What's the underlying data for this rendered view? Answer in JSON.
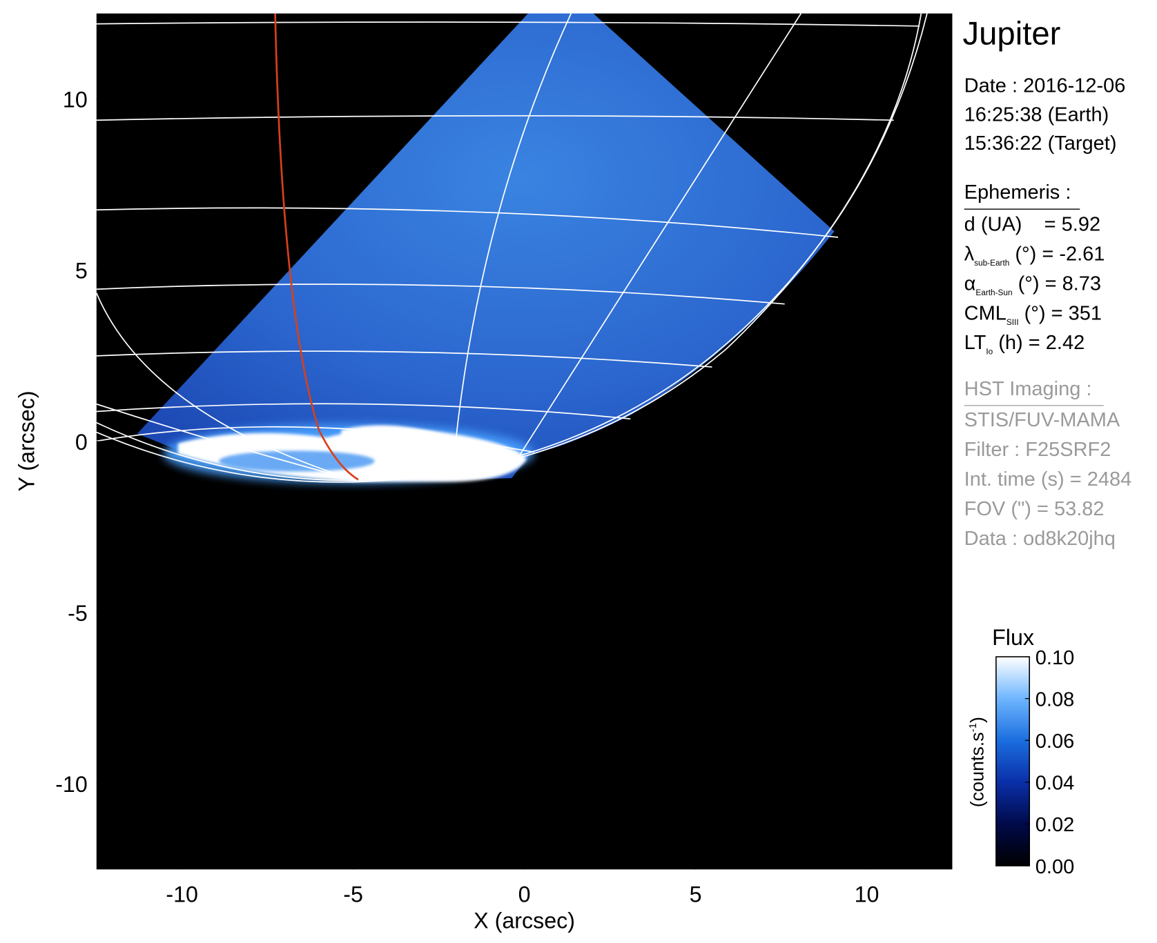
{
  "chart_data": {
    "type": "image",
    "title": "Jupiter",
    "xlabel": "X (arcsec)",
    "ylabel": "Y (arcsec)",
    "xlim": [
      -12.5,
      12.5
    ],
    "ylim": [
      -12.5,
      12.5
    ],
    "xticks": [
      -10,
      -5,
      0,
      5,
      10
    ],
    "yticks": [
      -10,
      -5,
      0,
      5,
      10
    ],
    "colorbar": {
      "label": "Flux",
      "units": {
        "text": "(counts.s",
        "sup": "-1",
        "close": ")"
      },
      "lim": [
        0,
        0.1
      ],
      "ticks": [
        {
          "value": 0,
          "label": "0.00"
        },
        {
          "value": 0.02,
          "label": "0.02"
        },
        {
          "value": 0.04,
          "label": "0.04"
        },
        {
          "value": 0.06,
          "label": "0.06"
        },
        {
          "value": 0.08,
          "label": "0.08"
        },
        {
          "value": 0.1,
          "label": "0.10"
        }
      ]
    },
    "info": {
      "date": [
        "Date : 2016-12-06",
        "16:25:38 (Earth)",
        "15:36:22 (Target)"
      ],
      "ephemeris": {
        "heading": "Ephemeris :",
        "rows": [
          {
            "symbol": "d (UA)",
            "sub": "",
            "text": "    = 5.92"
          },
          {
            "symbol": "λ",
            "sub": "sub-Earth",
            "text": " (°) = -2.61"
          },
          {
            "symbol": "α",
            "sub": "Earth-Sun",
            "text": " (°) = 8.73"
          },
          {
            "symbol": "CML",
            "sub": "SIII",
            "text": " (°) = 351"
          },
          {
            "symbol": "LT",
            "sub": "Io",
            "text": " (h) = 2.42"
          }
        ]
      },
      "hst": {
        "heading": "HST Imaging :",
        "lines": [
          "STIS/FUV-MAMA",
          "Filter : F25SRF2",
          "Int. time (s) = 2484",
          "FOV (\") = 53.82",
          "Data : od8k20jhq"
        ]
      }
    }
  }
}
